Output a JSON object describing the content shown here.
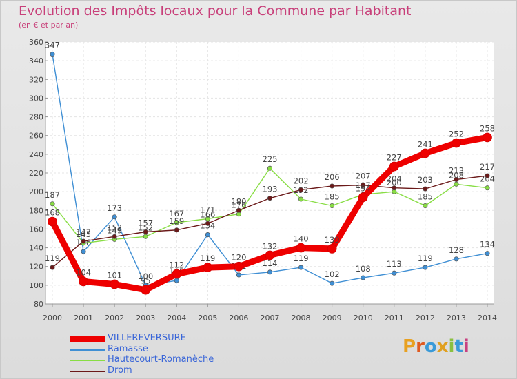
{
  "title": "Evolution des Impôts locaux pour la Commune par Habitant",
  "subtitle": "(en € et par an)",
  "logo_text": "Proxiti",
  "colors": {
    "title": "#c8407a",
    "legend_text": "#3a66d8"
  },
  "chart_data": {
    "type": "line",
    "title": "Evolution des Impôts locaux pour la Commune par Habitant",
    "subtitle": "(en € et par an)",
    "x": [
      "2000",
      "2001",
      "2002",
      "2003",
      "2004",
      "2005",
      "2006",
      "2007",
      "2008",
      "2009",
      "2010",
      "2011",
      "2012",
      "2013",
      "2014"
    ],
    "ylim": [
      80,
      360
    ],
    "yticks": [
      80,
      100,
      120,
      140,
      160,
      180,
      200,
      220,
      240,
      260,
      280,
      300,
      320,
      340,
      360
    ],
    "grid": true,
    "legend_position": "bottom-left",
    "series": [
      {
        "name": "VILLEREVERSURE",
        "color": "#ee0000",
        "values": [
          168,
          104,
          101,
          95,
          112,
          119,
          120,
          132,
          140,
          139,
          194,
          227,
          241,
          252,
          258
        ]
      },
      {
        "name": "Ramasse",
        "color": "#3f8fd4",
        "values": [
          347,
          136,
          173,
          100,
          105,
          154,
          111,
          114,
          119,
          102,
          108,
          113,
          119,
          128,
          134
        ]
      },
      {
        "name": "Hautecourt-Romanèche",
        "color": "#88dd44",
        "values": [
          187,
          145,
          149,
          152,
          167,
          171,
          176,
          225,
          192,
          185,
          197,
          200,
          185,
          208,
          204
        ]
      },
      {
        "name": "Drom",
        "color": "#6b1a1a",
        "values": [
          119,
          147,
          152,
          157,
          159,
          166,
          180,
          193,
          202,
          206,
          207,
          204,
          203,
          213,
          217
        ]
      }
    ]
  }
}
